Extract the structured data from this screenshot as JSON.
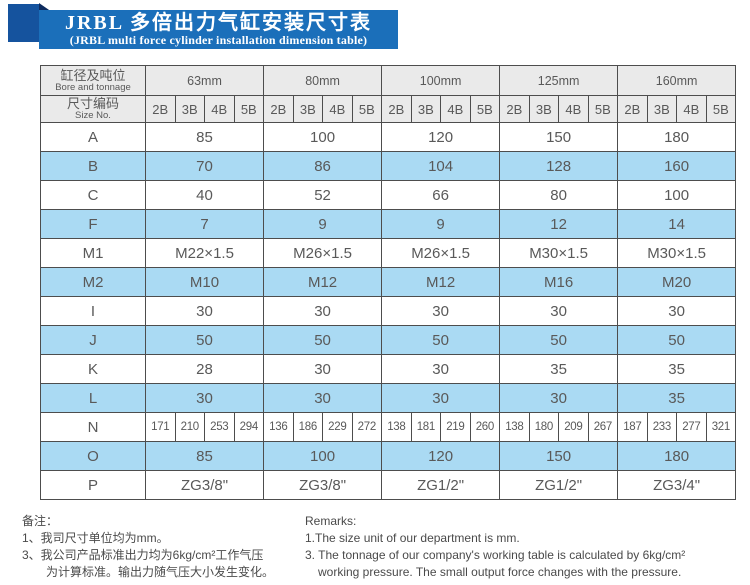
{
  "title": {
    "zh": "JRBL 多倍出力气缸安装尺寸表",
    "en": "(JRBL multi force cylinder installation dimension table)"
  },
  "table": {
    "header": {
      "col1_row1_zh": "缸径及吨位",
      "col1_row1_en": "Bore and tonnage",
      "col1_row2_zh": "尺寸编码",
      "col1_row2_en": "Size No.",
      "bores": [
        "63mm",
        "80mm",
        "100mm",
        "125mm",
        "160mm"
      ],
      "sizes": [
        "2B",
        "3B",
        "4B",
        "5B"
      ]
    },
    "rows": [
      {
        "label": "A",
        "type": "merged",
        "shaded": false,
        "values": [
          "85",
          "100",
          "120",
          "150",
          "180"
        ]
      },
      {
        "label": "B",
        "type": "merged",
        "shaded": true,
        "values": [
          "70",
          "86",
          "104",
          "128",
          "160"
        ]
      },
      {
        "label": "C",
        "type": "merged",
        "shaded": false,
        "values": [
          "40",
          "52",
          "66",
          "80",
          "100"
        ]
      },
      {
        "label": "F",
        "type": "merged",
        "shaded": true,
        "values": [
          "7",
          "9",
          "9",
          "12",
          "14"
        ]
      },
      {
        "label": "M1",
        "type": "merged",
        "shaded": false,
        "values": [
          "M22×1.5",
          "M26×1.5",
          "M26×1.5",
          "M30×1.5",
          "M30×1.5"
        ]
      },
      {
        "label": "M2",
        "type": "merged",
        "shaded": true,
        "values": [
          "M10",
          "M12",
          "M12",
          "M16",
          "M20"
        ]
      },
      {
        "label": "I",
        "type": "merged",
        "shaded": false,
        "values": [
          "30",
          "30",
          "30",
          "30",
          "30"
        ]
      },
      {
        "label": "J",
        "type": "merged",
        "shaded": true,
        "values": [
          "50",
          "50",
          "50",
          "50",
          "50"
        ]
      },
      {
        "label": "K",
        "type": "merged",
        "shaded": false,
        "values": [
          "28",
          "30",
          "30",
          "35",
          "35"
        ]
      },
      {
        "label": "L",
        "type": "merged",
        "shaded": true,
        "values": [
          "30",
          "30",
          "30",
          "30",
          "35"
        ]
      },
      {
        "label": "N",
        "type": "split",
        "shaded": false,
        "values": [
          [
            "171",
            "210",
            "253",
            "294"
          ],
          [
            "136",
            "186",
            "229",
            "272"
          ],
          [
            "138",
            "181",
            "219",
            "260"
          ],
          [
            "138",
            "180",
            "209",
            "267"
          ],
          [
            "187",
            "233",
            "277",
            "321"
          ]
        ]
      },
      {
        "label": "O",
        "type": "merged",
        "shaded": true,
        "values": [
          "85",
          "100",
          "120",
          "150",
          "180"
        ]
      },
      {
        "label": "P",
        "type": "merged",
        "shaded": false,
        "values": [
          "ZG3/8\"",
          "ZG3/8\"",
          "ZG1/2\"",
          "ZG1/2\"",
          "ZG3/4\""
        ]
      }
    ]
  },
  "notes": {
    "zh": [
      "备注：",
      "1、我司尺寸单位均为mm。",
      "3、我公司产品标准出力均为6kg/cm²工作气压",
      "为计算标准。输出力随气压大小发生变化。"
    ],
    "en": [
      "Remarks:",
      "1.The size unit of our department is mm.",
      "3. The tonnage of our company's working table is calculated by 6kg/cm²",
      "working pressure. The small output force changes with the pressure."
    ]
  },
  "colors": {
    "banner_blue": "#1b6fba",
    "ribbon_blue": "#15539e",
    "fold_navy": "#0d2b5e",
    "header_gray": "#eaeaea",
    "row_blue": "#aadaf3",
    "border_gray": "#4d4d4d",
    "text_gray": "#595959"
  }
}
